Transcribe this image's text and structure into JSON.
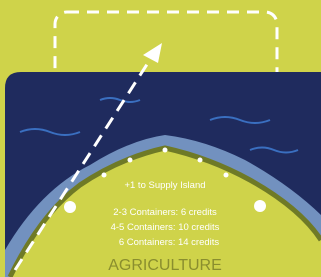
{
  "card": {
    "bonus": "+1 to Supply Island",
    "rewards": [
      "2-3 Containers: 6 credits",
      "4-5 Containers: 10 credits",
      "6 Containers: 14 credits"
    ],
    "title": "AGRICULTURE"
  }
}
